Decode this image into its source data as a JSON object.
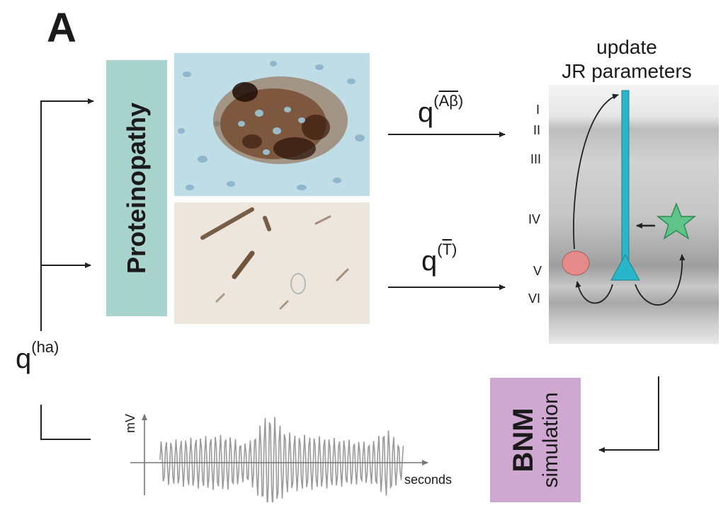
{
  "panel_letter": "A",
  "proteinopathy_label": "Proteinopathy",
  "q_abeta": {
    "base": "q",
    "sup": "Aβ"
  },
  "q_tau": {
    "base": "q",
    "sup": "T"
  },
  "q_ha": {
    "base": "q",
    "sup": "(ha)"
  },
  "update_label": {
    "line1": "update",
    "line2": "JR parameters"
  },
  "cortical_layers": [
    "I",
    "II",
    "III",
    "IV",
    "V",
    "VI"
  ],
  "bnm": {
    "title": "BNM",
    "subtitle": "simulation"
  },
  "signal_plot": {
    "ylabel": "mV",
    "xlabel": "seconds"
  },
  "colors": {
    "proteinopathy_box": "#a8d4cd",
    "bnm_box": "#cfa8d2",
    "pyramidal_cell": "#29b6c8",
    "inhibitory_cell": "#e58a8a",
    "stellate_cell": "#5fc488",
    "signal": "#9a9a9a"
  }
}
